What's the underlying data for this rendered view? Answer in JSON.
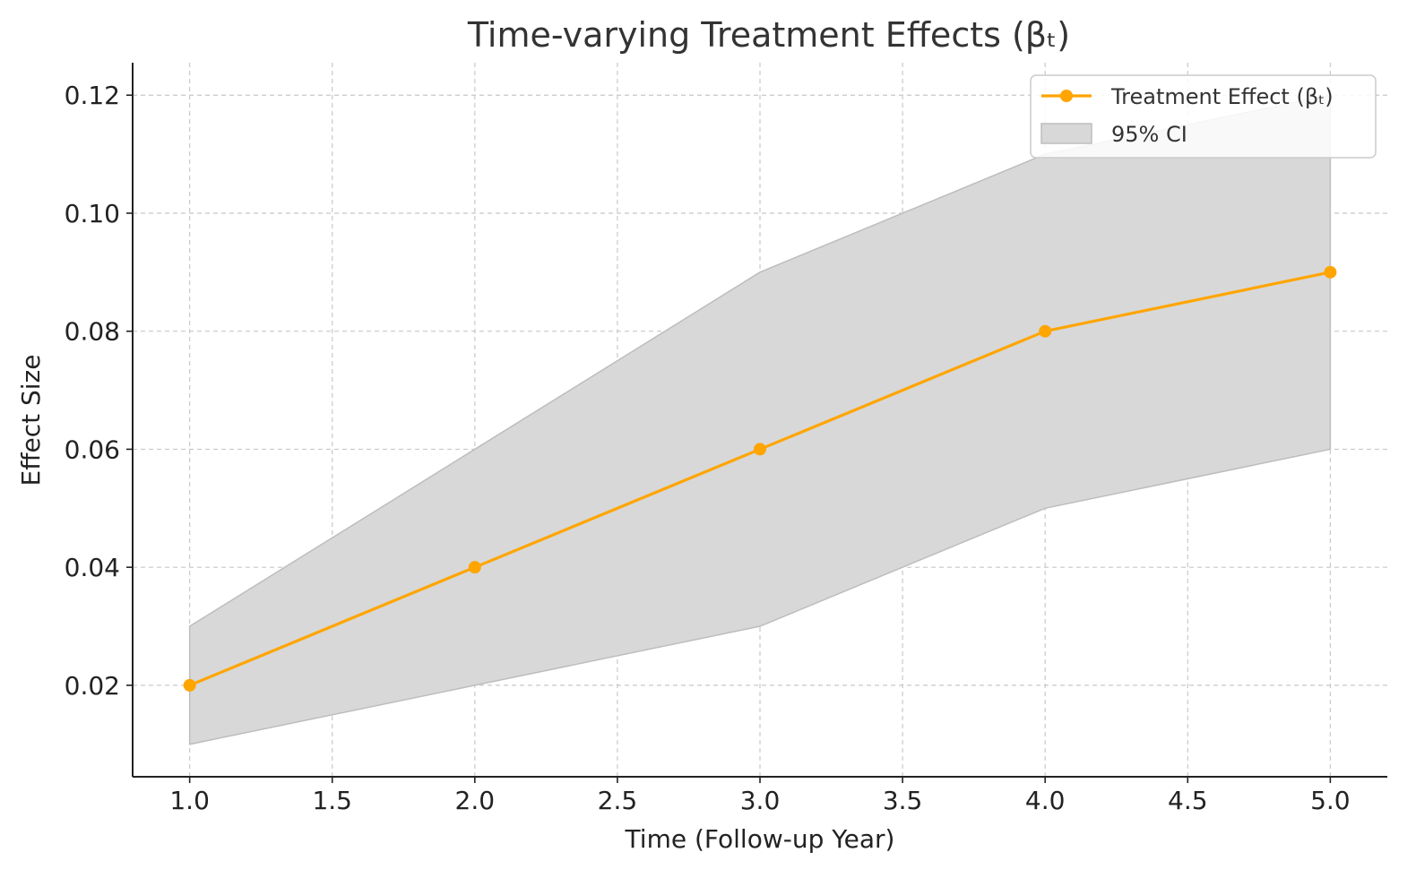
{
  "chart_data": {
    "type": "line",
    "title": "Time-varying Treatment Effects (βₜ)",
    "xlabel": "Time (Follow-up Year)",
    "ylabel": "Effect Size",
    "xlim": [
      0.8,
      5.2
    ],
    "ylim": [
      0.0045,
      0.1255
    ],
    "xticks": [
      1.0,
      1.5,
      2.0,
      2.5,
      3.0,
      3.5,
      4.0,
      4.5,
      5.0
    ],
    "xtick_labels": [
      "1.0",
      "1.5",
      "2.0",
      "2.5",
      "3.0",
      "3.5",
      "4.0",
      "4.5",
      "5.0"
    ],
    "yticks": [
      0.02,
      0.04,
      0.06,
      0.08,
      0.1,
      0.12
    ],
    "ytick_labels": [
      "0.02",
      "0.04",
      "0.06",
      "0.08",
      "0.10",
      "0.12"
    ],
    "grid": true,
    "legend_position": "top-right",
    "x": [
      1,
      2,
      3,
      4,
      5
    ],
    "series": [
      {
        "name": "Treatment Effect (βₜ)",
        "values": [
          0.02,
          0.04,
          0.06,
          0.08,
          0.09
        ],
        "color": "#FFA500"
      }
    ],
    "ci": {
      "name": "95% CI",
      "lower": [
        0.01,
        0.02,
        0.03,
        0.05,
        0.06
      ],
      "upper": [
        0.03,
        0.06,
        0.09,
        0.11,
        0.12
      ],
      "color": "#D8D8D8",
      "edge_color": "#BDBDBD"
    }
  }
}
